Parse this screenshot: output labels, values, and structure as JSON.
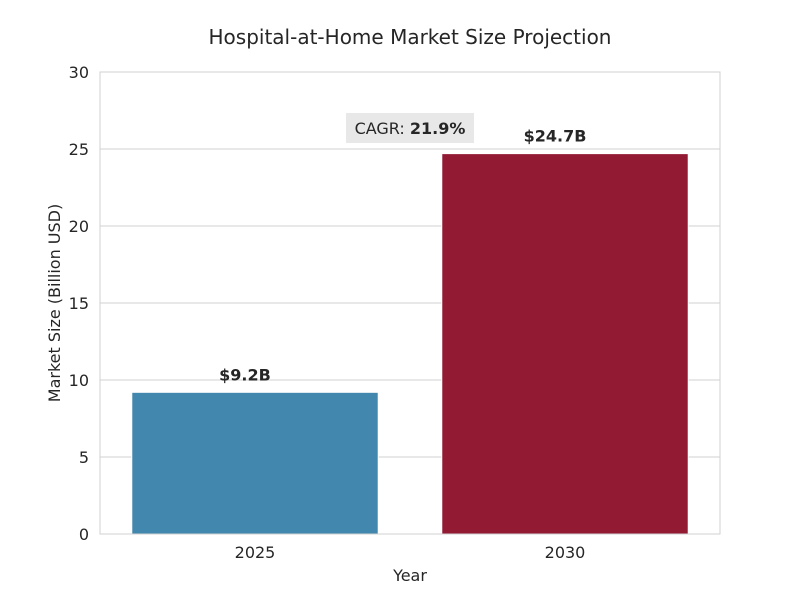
{
  "chart_data": {
    "type": "bar",
    "title": "Hospital-at-Home Market Size Projection",
    "xlabel": "Year",
    "ylabel": "Market Size (Billion USD)",
    "categories": [
      "2025",
      "2030"
    ],
    "values": [
      9.2,
      24.7
    ],
    "data_labels": [
      "$9.2B",
      "$24.7B"
    ],
    "bar_colors": [
      "#4287ae",
      "#921a33"
    ],
    "ylim": [
      0,
      30
    ],
    "yticks": [
      0,
      5,
      10,
      15,
      20,
      25,
      30
    ],
    "grid": true,
    "annotation": {
      "prefix": "CAGR: ",
      "value": "21.9%"
    }
  }
}
